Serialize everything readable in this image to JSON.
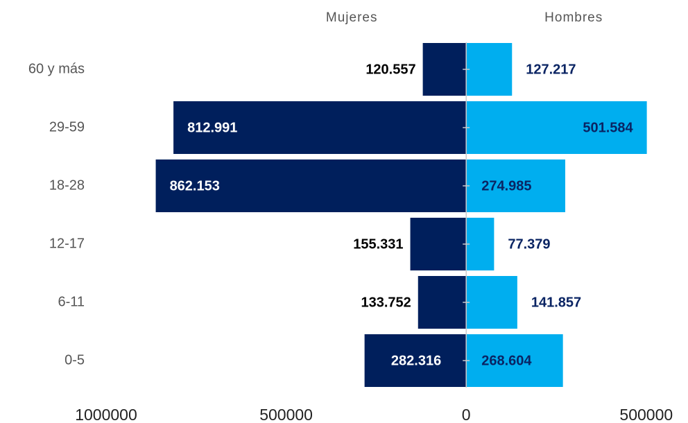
{
  "chart_data": {
    "type": "pyramid",
    "categories": [
      "60 y más",
      "29-59",
      "18-28",
      "12-17",
      "6-11",
      "0-5"
    ],
    "series": [
      {
        "name": "Mujeres",
        "color": "#001f5c",
        "values": [
          120557,
          812991,
          862153,
          155331,
          133752,
          282316
        ],
        "value_labels": [
          "120.557",
          "812.991",
          "862.153",
          "155.331",
          "133.752",
          "282.316"
        ]
      },
      {
        "name": "Hombres",
        "color": "#00aeef",
        "values": [
          127217,
          501584,
          274985,
          77379,
          141857,
          268604
        ],
        "value_labels": [
          "127.217",
          "501.584",
          "274.985",
          "77.379",
          "141.857",
          "268.604"
        ]
      }
    ],
    "xlim": [
      -1000000,
      510000
    ],
    "xticks": [
      {
        "value": -1000000,
        "label": "1000000"
      },
      {
        "value": -500000,
        "label": "500000"
      },
      0,
      500000
    ]
  }
}
